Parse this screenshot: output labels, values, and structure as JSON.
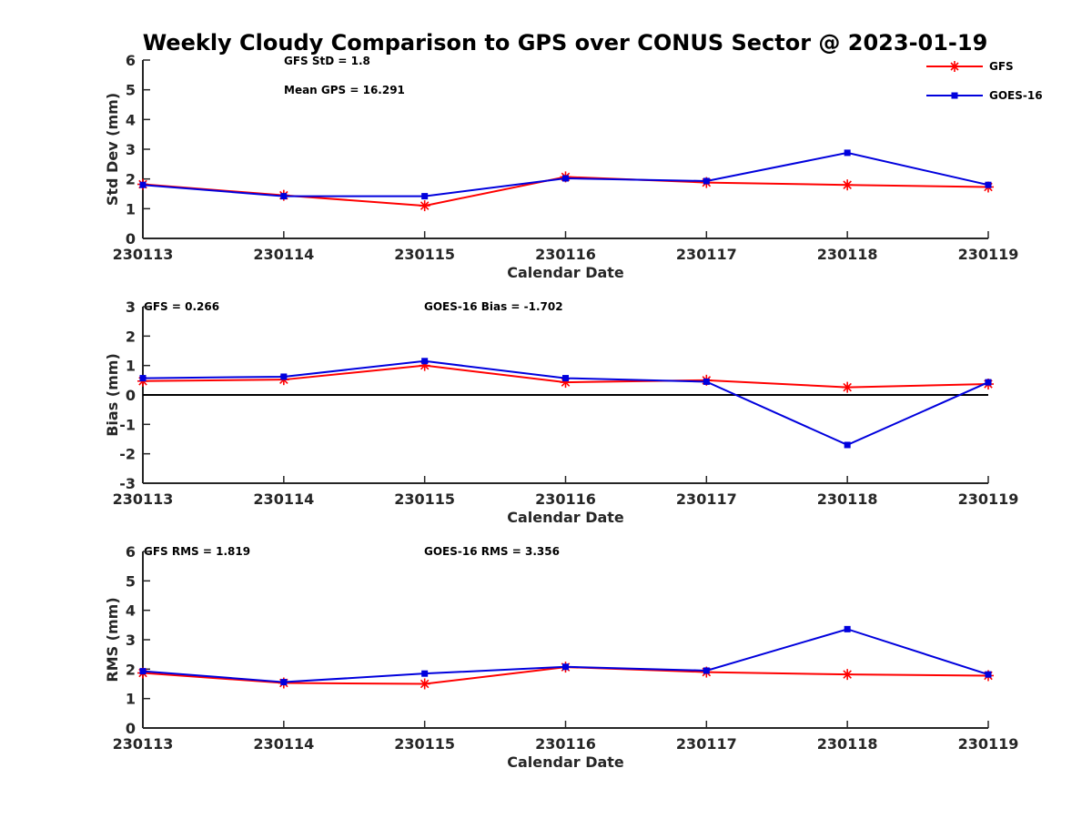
{
  "title": "Weekly Cloudy Comparison to GPS over CONUS Sector @ 2023-01-19",
  "colors": {
    "gfs": "#ff0000",
    "goes": "#0000dd",
    "axis": "#262626"
  },
  "legend": {
    "placement": "top-right",
    "items": [
      "GFS",
      "GOES-16"
    ]
  },
  "chart_data": [
    {
      "type": "line",
      "title": "",
      "xlabel": "Calendar Date",
      "ylabel": "Std Dev (mm)",
      "categories": [
        "230113",
        "230114",
        "230115",
        "230116",
        "230117",
        "230118",
        "230119"
      ],
      "ylim": [
        0,
        6
      ],
      "yticks": [
        "0",
        "1",
        "2",
        "3",
        "4",
        "5",
        "6"
      ],
      "grid": false,
      "series": [
        {
          "name": "GFS",
          "values": [
            1.82,
            1.45,
            1.1,
            2.07,
            1.88,
            1.8,
            1.73
          ],
          "marker": "asterisk"
        },
        {
          "name": "GOES-16",
          "values": [
            1.8,
            1.42,
            1.42,
            2.02,
            1.93,
            2.88,
            1.8
          ],
          "marker": "square"
        }
      ],
      "annotations": [
        "GFS StD = 1.8",
        "Mean GPS = 16.291"
      ]
    },
    {
      "type": "line",
      "title": "",
      "xlabel": "Calendar Date",
      "ylabel": "Bias (mm)",
      "categories": [
        "230113",
        "230114",
        "230115",
        "230116",
        "230117",
        "230118",
        "230119"
      ],
      "ylim": [
        -3,
        3
      ],
      "yticks": [
        "-3",
        "-2",
        "-1",
        "0",
        "1",
        "2",
        "3"
      ],
      "zero_line": true,
      "grid": false,
      "series": [
        {
          "name": "GFS",
          "values": [
            0.47,
            0.52,
            1.0,
            0.43,
            0.5,
            0.26,
            0.37
          ],
          "marker": "asterisk"
        },
        {
          "name": "GOES-16",
          "values": [
            0.57,
            0.62,
            1.15,
            0.57,
            0.45,
            -1.7,
            0.43
          ],
          "marker": "square"
        }
      ],
      "annotations": [
        "GFS = 0.266",
        "GOES-16 Bias  = -1.702"
      ]
    },
    {
      "type": "line",
      "title": "",
      "xlabel": "Calendar Date",
      "ylabel": "RMS (mm)",
      "categories": [
        "230113",
        "230114",
        "230115",
        "230116",
        "230117",
        "230118",
        "230119"
      ],
      "ylim": [
        0,
        6
      ],
      "yticks": [
        "0",
        "1",
        "2",
        "3",
        "4",
        "5",
        "6"
      ],
      "grid": false,
      "series": [
        {
          "name": "GFS",
          "values": [
            1.87,
            1.53,
            1.5,
            2.07,
            1.9,
            1.82,
            1.78
          ],
          "marker": "asterisk"
        },
        {
          "name": "GOES-16",
          "values": [
            1.93,
            1.56,
            1.85,
            2.08,
            1.95,
            3.36,
            1.82
          ],
          "marker": "square"
        }
      ],
      "annotations": [
        "GFS RMS = 1.819",
        "GOES-16 RMS = 3.356"
      ]
    }
  ]
}
